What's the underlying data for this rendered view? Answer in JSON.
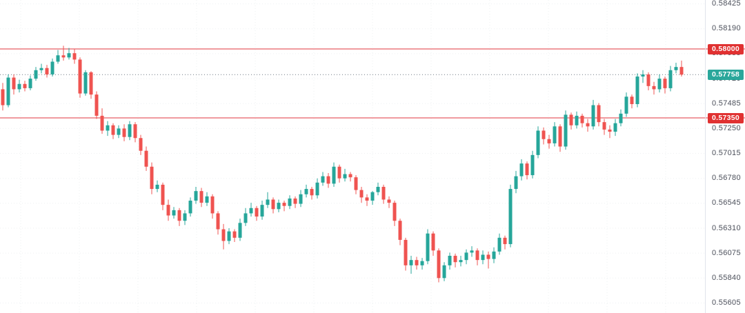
{
  "window": {
    "background": "#ffffff"
  },
  "chart": {
    "price_lines": [
      {
        "label": "0.58000",
        "price": 0.58,
        "line_color": "#f09a9e",
        "badge_color": "#e03131"
      },
      {
        "label": "0.57350",
        "price": 0.5735,
        "line_color": "#f09a9e",
        "badge_color": "#e03131"
      }
    ],
    "last_price": {
      "label": "0.57758",
      "value": 0.57758,
      "badge_color": "#2aa79b",
      "line_color": "#6b7680"
    },
    "axis": {
      "tick_color": "#4a4e59",
      "border_color": "#e0e3eb"
    }
  },
  "chart_data": {
    "type": "candlestick",
    "title": "",
    "xlabel": "",
    "ylabel": "",
    "legend": false,
    "grid": true,
    "ylim": [
      0.555105,
      0.584615
    ],
    "y_ticks": [
      0.58425,
      0.5819,
      0.57955,
      0.5772,
      0.57485,
      0.5725,
      0.57015,
      0.5678,
      0.56545,
      0.5631,
      0.56075,
      0.5584,
      0.55605
    ],
    "up_color": "#26a69a",
    "down_color": "#ef5350",
    "grid_color": "#8a94a6",
    "ohlc": [
      [
        0.5762,
        0.5768,
        0.5742,
        0.5747
      ],
      [
        0.5747,
        0.5776,
        0.5745,
        0.5773
      ],
      [
        0.5773,
        0.5776,
        0.5757,
        0.5762
      ],
      [
        0.5762,
        0.5771,
        0.5759,
        0.5767
      ],
      [
        0.5767,
        0.577,
        0.576,
        0.5763
      ],
      [
        0.5763,
        0.5775,
        0.5761,
        0.5772
      ],
      [
        0.5772,
        0.5783,
        0.577,
        0.578
      ],
      [
        0.578,
        0.5786,
        0.5777,
        0.5782
      ],
      [
        0.5782,
        0.5785,
        0.5773,
        0.5776
      ],
      [
        0.5776,
        0.5791,
        0.5774,
        0.5788
      ],
      [
        0.5788,
        0.5799,
        0.5786,
        0.5794
      ],
      [
        0.5794,
        0.5803,
        0.5789,
        0.5792
      ],
      [
        0.5792,
        0.5801,
        0.579,
        0.5796
      ],
      [
        0.5796,
        0.58,
        0.5786,
        0.579
      ],
      [
        0.579,
        0.5792,
        0.5754,
        0.5758
      ],
      [
        0.5758,
        0.578,
        0.5756,
        0.5778
      ],
      [
        0.5778,
        0.5779,
        0.5753,
        0.5757
      ],
      [
        0.5757,
        0.576,
        0.5734,
        0.5737
      ],
      [
        0.5737,
        0.5744,
        0.572,
        0.5723
      ],
      [
        0.5723,
        0.5732,
        0.5718,
        0.5728
      ],
      [
        0.5728,
        0.573,
        0.5715,
        0.5719
      ],
      [
        0.5719,
        0.5728,
        0.5716,
        0.5725
      ],
      [
        0.5725,
        0.5729,
        0.5713,
        0.5717
      ],
      [
        0.5717,
        0.5732,
        0.5714,
        0.5729
      ],
      [
        0.5729,
        0.5731,
        0.5712,
        0.5716
      ],
      [
        0.5716,
        0.5719,
        0.57,
        0.5704
      ],
      [
        0.5704,
        0.5708,
        0.5685,
        0.5689
      ],
      [
        0.5689,
        0.5693,
        0.5663,
        0.5668
      ],
      [
        0.5668,
        0.5676,
        0.5665,
        0.5672
      ],
      [
        0.5672,
        0.5674,
        0.5648,
        0.5653
      ],
      [
        0.5653,
        0.5658,
        0.5638,
        0.5643
      ],
      [
        0.5643,
        0.5651,
        0.564,
        0.5648
      ],
      [
        0.5648,
        0.565,
        0.5633,
        0.5638
      ],
      [
        0.5638,
        0.5648,
        0.5634,
        0.5645
      ],
      [
        0.5645,
        0.566,
        0.5642,
        0.5657
      ],
      [
        0.5657,
        0.567,
        0.5654,
        0.5666
      ],
      [
        0.5666,
        0.5669,
        0.5651,
        0.5655
      ],
      [
        0.5655,
        0.5665,
        0.5652,
        0.5661
      ],
      [
        0.5661,
        0.5663,
        0.564,
        0.5645
      ],
      [
        0.5645,
        0.5647,
        0.5625,
        0.563
      ],
      [
        0.563,
        0.5635,
        0.5611,
        0.5619
      ],
      [
        0.5619,
        0.5631,
        0.5616,
        0.5628
      ],
      [
        0.5628,
        0.563,
        0.5618,
        0.5622
      ],
      [
        0.5622,
        0.564,
        0.5619,
        0.5636
      ],
      [
        0.5636,
        0.565,
        0.5633,
        0.5645
      ],
      [
        0.5645,
        0.5655,
        0.5642,
        0.565
      ],
      [
        0.565,
        0.5652,
        0.5638,
        0.5642
      ],
      [
        0.5642,
        0.5657,
        0.5639,
        0.5653
      ],
      [
        0.5653,
        0.5665,
        0.565,
        0.5658
      ],
      [
        0.5658,
        0.566,
        0.5645,
        0.5649
      ],
      [
        0.5649,
        0.5658,
        0.5646,
        0.5655
      ],
      [
        0.5655,
        0.5657,
        0.5647,
        0.5652
      ],
      [
        0.5652,
        0.5662,
        0.5649,
        0.5659
      ],
      [
        0.5659,
        0.5661,
        0.565,
        0.5654
      ],
      [
        0.5654,
        0.5667,
        0.5651,
        0.5663
      ],
      [
        0.5663,
        0.5672,
        0.566,
        0.5668
      ],
      [
        0.5668,
        0.567,
        0.5658,
        0.5662
      ],
      [
        0.5662,
        0.5678,
        0.5659,
        0.5674
      ],
      [
        0.5674,
        0.5684,
        0.5671,
        0.568
      ],
      [
        0.568,
        0.5683,
        0.5669,
        0.5673
      ],
      [
        0.5673,
        0.5693,
        0.567,
        0.5689
      ],
      [
        0.5689,
        0.5691,
        0.5674,
        0.5678
      ],
      [
        0.5678,
        0.5687,
        0.5675,
        0.5682
      ],
      [
        0.5682,
        0.5684,
        0.5675,
        0.5679
      ],
      [
        0.5679,
        0.5681,
        0.5663,
        0.5667
      ],
      [
        0.5667,
        0.567,
        0.5655,
        0.566
      ],
      [
        0.566,
        0.5663,
        0.5652,
        0.5657
      ],
      [
        0.5657,
        0.5666,
        0.5653,
        0.5665
      ],
      [
        0.5665,
        0.5674,
        0.5662,
        0.567
      ],
      [
        0.567,
        0.5672,
        0.5654,
        0.5658
      ],
      [
        0.5658,
        0.5661,
        0.565,
        0.5655
      ],
      [
        0.5655,
        0.5657,
        0.5633,
        0.5638
      ],
      [
        0.5638,
        0.564,
        0.5615,
        0.562
      ],
      [
        0.562,
        0.5622,
        0.5591,
        0.5596
      ],
      [
        0.5596,
        0.5605,
        0.5588,
        0.5601
      ],
      [
        0.5601,
        0.5604,
        0.5592,
        0.5596
      ],
      [
        0.5596,
        0.5603,
        0.5592,
        0.56
      ],
      [
        0.56,
        0.563,
        0.5597,
        0.5626
      ],
      [
        0.5626,
        0.5628,
        0.5605,
        0.561
      ],
      [
        0.561,
        0.5612,
        0.558,
        0.5584
      ],
      [
        0.5584,
        0.5599,
        0.5581,
        0.5596
      ],
      [
        0.5596,
        0.5608,
        0.5592,
        0.5605
      ],
      [
        0.5605,
        0.5607,
        0.5594,
        0.5599
      ],
      [
        0.5599,
        0.5605,
        0.5595,
        0.5601
      ],
      [
        0.5601,
        0.5611,
        0.5597,
        0.5608
      ],
      [
        0.5608,
        0.5614,
        0.5604,
        0.561
      ],
      [
        0.561,
        0.5612,
        0.5596,
        0.5601
      ],
      [
        0.5601,
        0.561,
        0.5597,
        0.5606
      ],
      [
        0.5606,
        0.5609,
        0.5593,
        0.5602
      ],
      [
        0.5602,
        0.5613,
        0.5598,
        0.5609
      ],
      [
        0.5609,
        0.5626,
        0.5606,
        0.5622
      ],
      [
        0.5622,
        0.5624,
        0.5611,
        0.5616
      ],
      [
        0.5616,
        0.5672,
        0.5613,
        0.5668
      ],
      [
        0.5668,
        0.5685,
        0.5664,
        0.568
      ],
      [
        0.568,
        0.5696,
        0.5676,
        0.5692
      ],
      [
        0.5692,
        0.5694,
        0.5677,
        0.5681
      ],
      [
        0.5681,
        0.5704,
        0.5678,
        0.57
      ],
      [
        0.57,
        0.5727,
        0.5697,
        0.5723
      ],
      [
        0.5723,
        0.5726,
        0.571,
        0.5715
      ],
      [
        0.5715,
        0.5719,
        0.5706,
        0.5711
      ],
      [
        0.5711,
        0.5731,
        0.5708,
        0.5727
      ],
      [
        0.5727,
        0.5729,
        0.5703,
        0.5708
      ],
      [
        0.5708,
        0.5742,
        0.5705,
        0.5738
      ],
      [
        0.5738,
        0.574,
        0.5724,
        0.5728
      ],
      [
        0.5728,
        0.5741,
        0.5725,
        0.5737
      ],
      [
        0.5737,
        0.5739,
        0.5726,
        0.573
      ],
      [
        0.573,
        0.5734,
        0.5722,
        0.5727
      ],
      [
        0.5727,
        0.5752,
        0.5724,
        0.5747
      ],
      [
        0.5747,
        0.5749,
        0.5727,
        0.5731
      ],
      [
        0.5731,
        0.5734,
        0.5719,
        0.5724
      ],
      [
        0.5724,
        0.5728,
        0.5716,
        0.5722
      ],
      [
        0.5722,
        0.5734,
        0.5718,
        0.573
      ],
      [
        0.573,
        0.5743,
        0.5727,
        0.5739
      ],
      [
        0.5739,
        0.5759,
        0.5736,
        0.5755
      ],
      [
        0.5755,
        0.5757,
        0.5744,
        0.5748
      ],
      [
        0.5748,
        0.5777,
        0.5745,
        0.5774
      ],
      [
        0.5774,
        0.578,
        0.5768,
        0.5776
      ],
      [
        0.5776,
        0.5778,
        0.5761,
        0.5765
      ],
      [
        0.5765,
        0.5769,
        0.5757,
        0.5762
      ],
      [
        0.5762,
        0.5776,
        0.5759,
        0.5772
      ],
      [
        0.5772,
        0.5774,
        0.5758,
        0.5763
      ],
      [
        0.5763,
        0.5784,
        0.576,
        0.578
      ],
      [
        0.578,
        0.5787,
        0.5777,
        0.5783
      ],
      [
        0.5783,
        0.5789,
        0.5774,
        0.57758
      ]
    ]
  }
}
